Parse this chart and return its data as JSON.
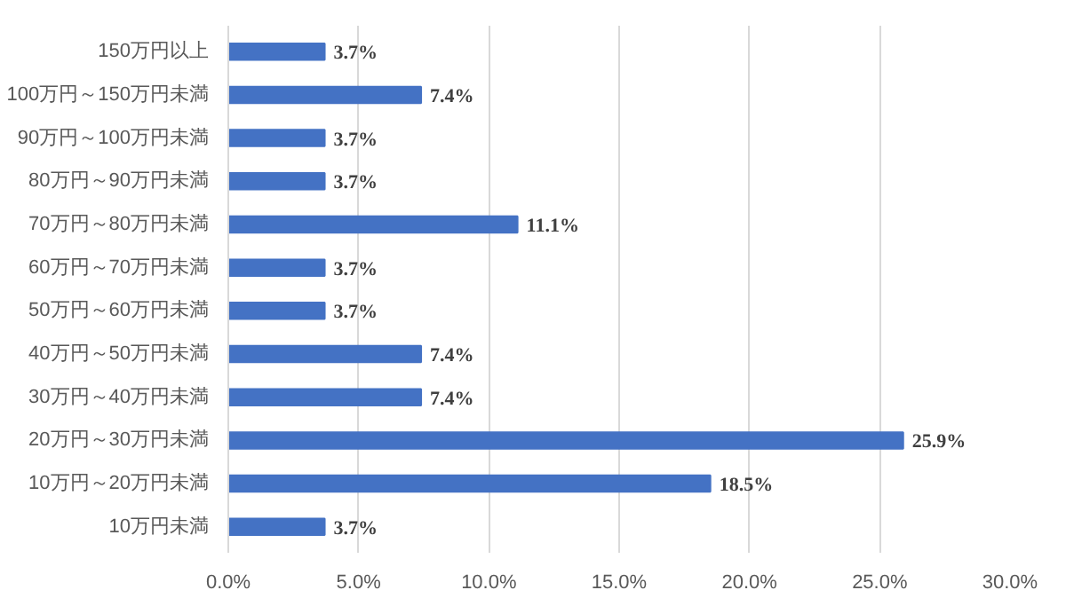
{
  "chart_data": {
    "type": "bar",
    "orientation": "horizontal",
    "categories": [
      "150万円以上",
      "100万円～150万円未満",
      "90万円～100万円未満",
      "80万円～90万円未満",
      "70万円～80万円未満",
      "60万円～70万円未満",
      "50万円～60万円未満",
      "40万円～50万円未満",
      "30万円～40万円未満",
      "20万円～30万円未満",
      "10万円～20万円未満",
      "10万円未満"
    ],
    "values": [
      3.7,
      7.4,
      3.7,
      3.7,
      11.1,
      3.7,
      3.7,
      7.4,
      7.4,
      25.9,
      18.5,
      3.7
    ],
    "value_labels": [
      "3.7%",
      "7.4%",
      "3.7%",
      "3.7%",
      "11.1%",
      "3.7%",
      "3.7%",
      "7.4%",
      "7.4%",
      "25.9%",
      "18.5%",
      "3.7%"
    ],
    "color": "#4472c4",
    "xlim": [
      0,
      30
    ],
    "xticks": [
      {
        "value": 0,
        "label": "0.0%"
      },
      {
        "value": 5,
        "label": "5.0%"
      },
      {
        "value": 10,
        "label": "10.0%"
      },
      {
        "value": 15,
        "label": "15.0%"
      },
      {
        "value": 20,
        "label": "20.0%"
      },
      {
        "value": 25,
        "label": "25.0%"
      },
      {
        "value": 30,
        "label": "30.0%"
      }
    ],
    "grid": "x"
  }
}
